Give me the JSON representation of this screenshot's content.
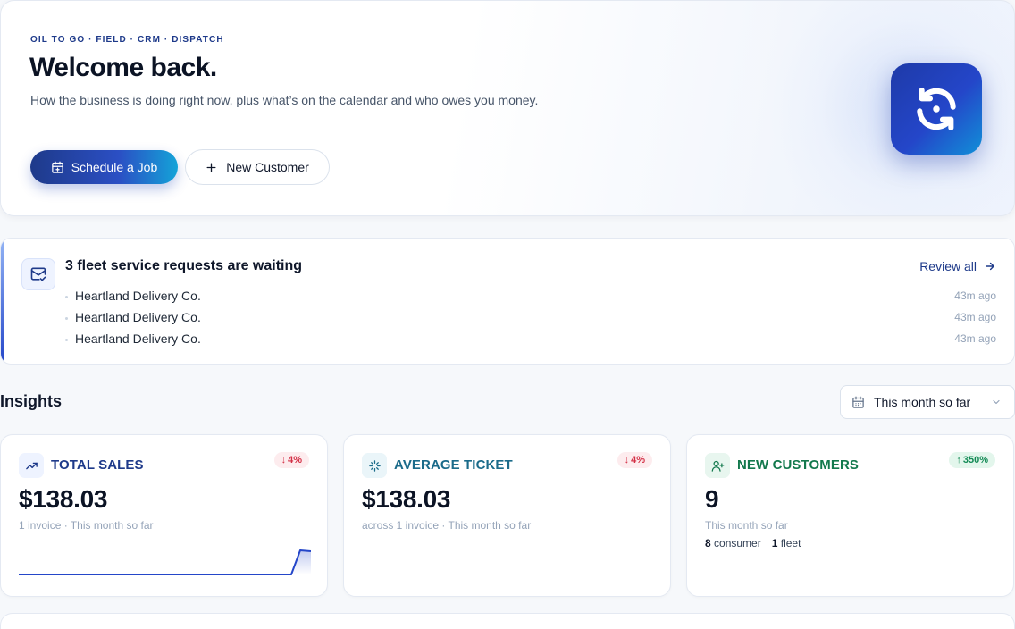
{
  "hero": {
    "eyebrow": "OIL TO GO · FIELD · CRM · DISPATCH",
    "title": "Welcome back.",
    "subtitle": "How the business is doing right now, plus what’s on the calendar and who owes you money.",
    "primary_button": "Schedule a Job",
    "secondary_button": "New Customer",
    "app_icon": "sync-icon"
  },
  "requests": {
    "title": "3 fleet service requests are waiting",
    "review_label": "Review all",
    "items": [
      {
        "name": "Heartland Delivery Co.",
        "time": "43m ago"
      },
      {
        "name": "Heartland Delivery Co.",
        "time": "43m ago"
      },
      {
        "name": "Heartland Delivery Co.",
        "time": "43m ago"
      }
    ]
  },
  "insights": {
    "title": "Insights",
    "range": "This month so far"
  },
  "cards": {
    "total_sales": {
      "label": "TOTAL SALES",
      "badge": "4%",
      "badge_direction": "down",
      "value": "$138.03",
      "sub": "1 invoice · This month so far",
      "accent": "#1e3a8a"
    },
    "average_ticket": {
      "label": "AVERAGE TICKET",
      "badge": "4%",
      "badge_direction": "down",
      "value": "$138.03",
      "sub": "across 1 invoice · This month so far",
      "accent": "#1b6b8a"
    },
    "new_customers": {
      "label": "NEW CUSTOMERS",
      "badge": "350%",
      "badge_direction": "up",
      "value": "9",
      "sub": "This month so far",
      "consumer_count": "8",
      "consumer_label": "consumer",
      "fleet_count": "1",
      "fleet_label": "fleet",
      "accent": "#13794d"
    }
  },
  "colors": {
    "brand": "#1e3a8a",
    "accent_cyan": "#14a3d8",
    "negative": "#d32f45",
    "positive": "#138a55"
  }
}
